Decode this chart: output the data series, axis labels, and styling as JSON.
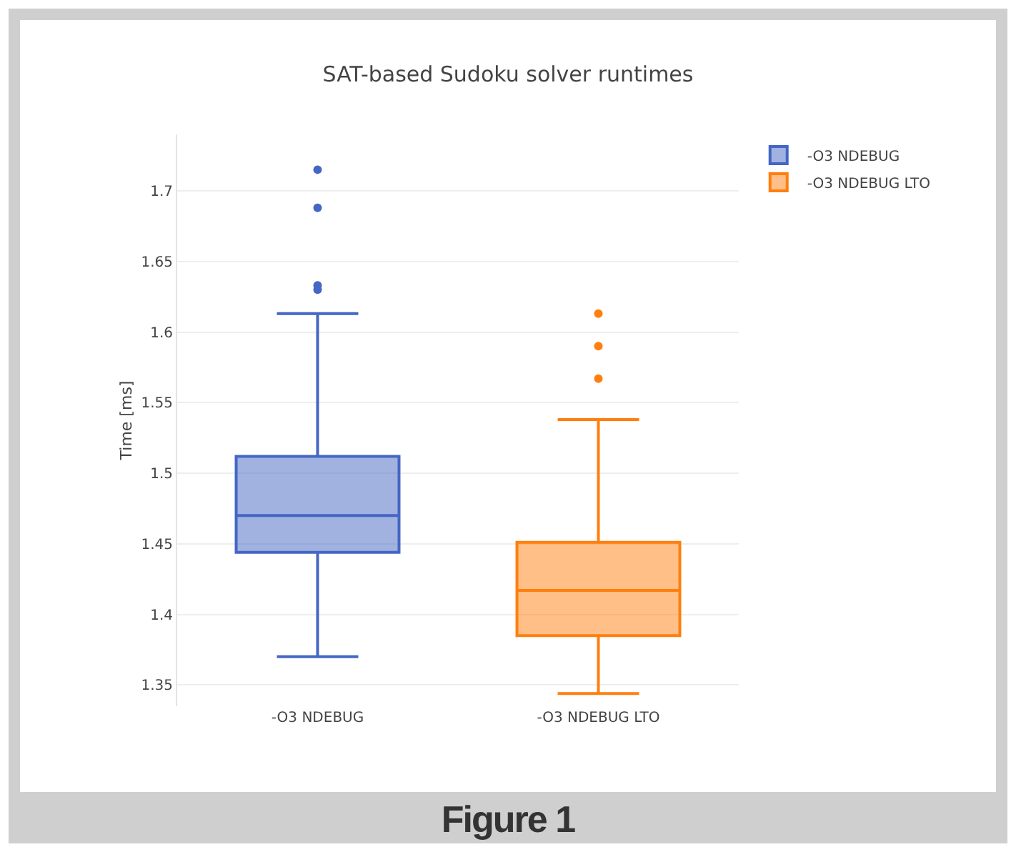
{
  "chart_data": {
    "type": "box",
    "title": "SAT-based Sudoku solver runtimes",
    "ylabel": "Time [ms]",
    "categories": [
      "-O3 NDEBUG",
      "-O3 NDEBUG LTO"
    ],
    "series": [
      {
        "name": "-O3 NDEBUG",
        "color": "#4466c4",
        "boxes": [
          {
            "low": 1.37,
            "q1": 1.444,
            "median": 1.47,
            "q3": 1.512,
            "high": 1.613,
            "outliers": [
              1.715,
              1.688,
              1.633,
              1.63
            ]
          },
          null
        ]
      },
      {
        "name": "-O3 NDEBUG LTO",
        "color": "#ff7f0e",
        "boxes": [
          null,
          {
            "low": 1.344,
            "q1": 1.385,
            "median": 1.417,
            "q3": 1.451,
            "high": 1.538,
            "outliers": [
              1.613,
              1.59,
              1.567
            ]
          }
        ]
      }
    ],
    "ylim": [
      1.335,
      1.74
    ],
    "yticks": [
      {
        "value": 1.35,
        "label": "1.35"
      },
      {
        "value": 1.4,
        "label": "1.4"
      },
      {
        "value": 1.45,
        "label": "1.45"
      },
      {
        "value": 1.5,
        "label": "1.5"
      },
      {
        "value": 1.55,
        "label": "1.55"
      },
      {
        "value": 1.6,
        "label": "1.6"
      },
      {
        "value": 1.65,
        "label": "1.65"
      },
      {
        "value": 1.7,
        "label": "1.7"
      }
    ],
    "grid": "y",
    "legend": "top right",
    "marker": "circle",
    "annotations": [
      "Figure 1"
    ]
  }
}
